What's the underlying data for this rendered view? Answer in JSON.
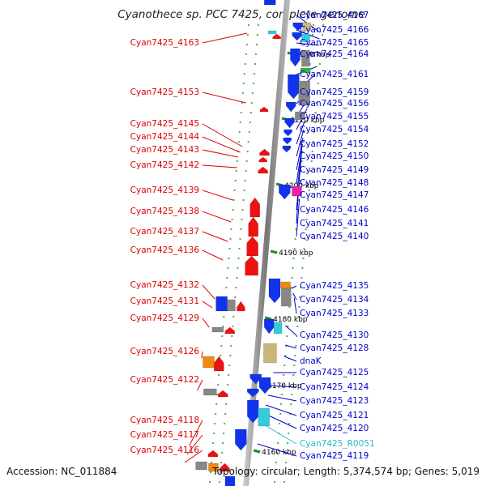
{
  "title": "Cyanothece sp. PCC 7425, complete genome",
  "footer": {
    "accession": "Accession: NC_011884",
    "summary": "Topology: circular; Length: 5,374,574 bp; Genes: 5,019"
  },
  "colors": {
    "forward_gene": "#ee1111",
    "reverse_gene": "#1133ee",
    "feature_gray": "#888888",
    "feature_tan": "#c8b878",
    "feature_cyan": "#33ccdd",
    "feature_magenta": "#ee22aa",
    "feature_orange": "#ee8811",
    "feature_green": "#33bb33",
    "scale_tick": "#228822",
    "rna_label": "#22bbcc"
  },
  "scale_labels": [
    "4220 kbp",
    "4210 kbp",
    "4200 kbp",
    "4190 kbp",
    "4180 kbp",
    "4170 kbp",
    "4160 kbp"
  ],
  "left_labels": [
    "Cyan7425_4163",
    "Cyan7425_4153",
    "Cyan7425_4145",
    "Cyan7425_4144",
    "Cyan7425_4143",
    "Cyan7425_4142",
    "Cyan7425_4139",
    "Cyan7425_4138",
    "Cyan7425_4137",
    "Cyan7425_4136",
    "Cyan7425_4132",
    "Cyan7425_4131",
    "Cyan7425_4129",
    "Cyan7425_4126",
    "Cyan7425_4122",
    "Cyan7425_4118",
    "Cyan7425_4117",
    "Cyan7425_4116"
  ],
  "right_labels": [
    "Cyan7425_4167",
    "Cyan7425_4166",
    "Cyan7425_4165",
    "Cyan7425_4164",
    "Cyan7425_4161",
    "Cyan7425_4159",
    "Cyan7425_4156",
    "Cyan7425_4155",
    "Cyan7425_4154",
    "Cyan7425_4152",
    "Cyan7425_4150",
    "Cyan7425_4149",
    "Cyan7425_4148",
    "Cyan7425_4147",
    "Cyan7425_4146",
    "Cyan7425_4141",
    "Cyan7425_4140",
    "Cyan7425_4135",
    "Cyan7425_4134",
    "Cyan7425_4133",
    "Cyan7425_4130",
    "Cyan7425_4128",
    "dnaK",
    "Cyan7425_4125",
    "Cyan7425_4124",
    "Cyan7425_4123",
    "Cyan7425_4121",
    "Cyan7425_4120",
    "Cyan7425_R0051",
    "Cyan7425_4119"
  ]
}
